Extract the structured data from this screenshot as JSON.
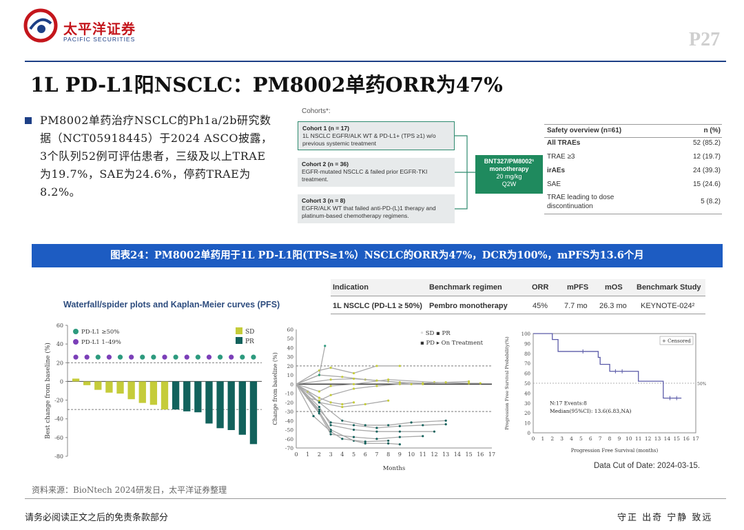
{
  "header": {
    "brand_cn": "太平洋证券",
    "brand_en": "PACIFIC SECURITIES",
    "page_number": "P27"
  },
  "page_title": "1L PD-L1阳NSCLC：PM8002单药ORR为47%",
  "bullet": "PM8002单药治疗NSCLC的Ph1a/2b研究数据（NCT05918445）于2024 ASCO披露，3个队列52例可评估患者，三级及以上TRAE为19.7%，SAE为24.6%，停药TRAE为8.2%。",
  "cohorts": {
    "heading": "Cohorts*:",
    "items": [
      {
        "title": "Cohort 1 (n = 17)",
        "desc": "1L NSCLC EGFR/ALK WT & PD-L1+ (TPS ≥1) w/o previous systemic treatment"
      },
      {
        "title": "Cohort 2 (n = 36)",
        "desc": "EGFR-mutated NSCLC & failed prior EGFR-TKI treatment."
      },
      {
        "title": "Cohort 3 (n = 8)",
        "desc": "EGFR/ALK WT that failed anti-PD-(L)1 therapy and platinum-based chemotherapy regimens."
      }
    ],
    "treatment": {
      "name": "BNT327/PM8002¹ monotherapy",
      "dose": "20 mg/kg",
      "schedule": "Q2W"
    }
  },
  "safety": {
    "header_label": "Safety overview (n=61)",
    "header_value": "n (%)",
    "rows": [
      {
        "label": "All TRAEs",
        "value": "52 (85.2)",
        "bold": true
      },
      {
        "label": "TRAE ≥3",
        "value": "12 (19.7)",
        "bold": false
      },
      {
        "label": "irAEs",
        "value": "24 (39.3)",
        "bold": true
      },
      {
        "label": "SAE",
        "value": "15 (24.6)",
        "bold": false
      },
      {
        "label": "TRAE leading to dose discontinuation",
        "value": "5 (8.2)",
        "bold": false
      }
    ]
  },
  "figure_banner": "图表24：PM8002单药用于1L PD-L1阳(TPS≥1%）NSCLC的ORR为47%，DCR为100%，mPFS为13.6个月",
  "benchmark": {
    "headers": [
      "Indication",
      "Benchmark regimen",
      "ORR",
      "mPFS",
      "mOS",
      "Benchmark Study"
    ],
    "row": [
      "1L NSCLC (PD-L1 ≥ 50%)",
      "Pembro monotherapy",
      "45%",
      "7.7 mo",
      "26.3 mo",
      "KEYNOTE-024²"
    ]
  },
  "figure_title": "Waterfall/spider plots and Kaplan-Meier curves (PFS)",
  "chart_data": [
    {
      "type": "bar",
      "subtype": "waterfall",
      "ylabel": "Best change from baseline (%)",
      "ylim": [
        -80,
        60
      ],
      "yticks": [
        60,
        40,
        20,
        0,
        -20,
        -40,
        -60,
        -80
      ],
      "reference_lines": [
        20,
        -30
      ],
      "legend": [
        {
          "name": "PD-L1 ≥50%",
          "color": "#2d9a7e",
          "marker": "dot"
        },
        {
          "name": "PD-L1 1–49%",
          "color": "#7b3fb8",
          "marker": "dot"
        },
        {
          "name": "SD",
          "color": "#c5cc3a",
          "marker": "square"
        },
        {
          "name": "PR",
          "color": "#12625c",
          "marker": "square"
        }
      ],
      "values": [
        3,
        -4,
        -9,
        -12,
        -13,
        -19,
        -23,
        -25,
        -30,
        -30,
        -32,
        -33,
        -45,
        -50,
        -52,
        -57,
        -67
      ],
      "response": [
        "SD",
        "SD",
        "SD",
        "SD",
        "SD",
        "SD",
        "SD",
        "SD",
        "SD",
        "PR",
        "PR",
        "PR",
        "PR",
        "PR",
        "PR",
        "PR",
        "PR"
      ],
      "pdl1": [
        "1-49",
        "1-49",
        "≥50",
        "1-49",
        "≥50",
        "1-49",
        "≥50",
        "≥50",
        "1-49",
        "≥50",
        "1-49",
        "≥50",
        "1-49",
        "≥50",
        "1-49",
        "≥50",
        "≥50"
      ]
    },
    {
      "type": "line",
      "subtype": "spider",
      "ylabel": "Change from baseline (%)",
      "xlabel": "Months",
      "xlim": [
        0,
        17
      ],
      "ylim": [
        -70,
        60
      ],
      "xticks": [
        0,
        1,
        2,
        3,
        4,
        5,
        6,
        7,
        8,
        9,
        10,
        11,
        12,
        13,
        14,
        15,
        16,
        17
      ],
      "yticks": [
        60,
        50,
        40,
        30,
        20,
        10,
        0,
        -10,
        -20,
        -30,
        -40,
        -50,
        -60,
        -70
      ],
      "reference_lines": [
        20,
        0,
        -30
      ],
      "legend": [
        "SD",
        "PR",
        "PD",
        "On Treatment"
      ],
      "series": [
        {
          "x": [
            0,
            2,
            3,
            5,
            8,
            12,
            15,
            16
          ],
          "y": [
            0,
            -8,
            -2,
            0,
            5,
            2,
            1,
            1
          ],
          "resp": "SD"
        },
        {
          "x": [
            0,
            2,
            3,
            5,
            7,
            9
          ],
          "y": [
            0,
            15,
            18,
            12,
            20,
            20
          ],
          "resp": "SD"
        },
        {
          "x": [
            0,
            1,
            2,
            3,
            5,
            7,
            9,
            11
          ],
          "y": [
            0,
            -15,
            -18,
            -12,
            -5,
            -2,
            0,
            0
          ],
          "resp": "SD"
        },
        {
          "x": [
            0,
            2,
            4,
            6,
            8,
            10
          ],
          "y": [
            0,
            10,
            8,
            5,
            3,
            0
          ],
          "resp": "SD"
        },
        {
          "x": [
            0,
            2,
            2.5
          ],
          "y": [
            0,
            10,
            42
          ],
          "resp": "PD"
        },
        {
          "x": [
            0,
            1,
            2,
            4,
            6,
            8
          ],
          "y": [
            0,
            -8,
            -20,
            -25,
            -22,
            -18
          ],
          "resp": "SD"
        },
        {
          "x": [
            0,
            2,
            3,
            5,
            7,
            9,
            11,
            13
          ],
          "y": [
            0,
            -28,
            -42,
            -45,
            -48,
            -46,
            -45,
            -44
          ],
          "resp": "PR"
        },
        {
          "x": [
            0,
            2,
            3,
            5,
            7,
            9,
            12
          ],
          "y": [
            0,
            -25,
            -45,
            -50,
            -52,
            -52,
            -52
          ],
          "resp": "PR"
        },
        {
          "x": [
            0,
            2,
            4,
            6,
            8,
            10,
            13
          ],
          "y": [
            0,
            -20,
            -40,
            -45,
            -45,
            -42,
            -40
          ],
          "resp": "PR"
        },
        {
          "x": [
            0,
            2,
            3,
            5,
            7,
            9,
            11
          ],
          "y": [
            0,
            -32,
            -55,
            -58,
            -60,
            -58,
            -57
          ],
          "resp": "PR"
        },
        {
          "x": [
            0,
            2,
            3,
            5,
            6,
            8,
            9
          ],
          "y": [
            0,
            -30,
            -50,
            -62,
            -65,
            -65,
            -66
          ],
          "resp": "PR"
        },
        {
          "x": [
            0,
            1.5,
            3,
            4,
            6,
            8
          ],
          "y": [
            0,
            -35,
            -52,
            -60,
            -63,
            -62
          ],
          "resp": "PR"
        },
        {
          "x": [
            0,
            2,
            3,
            4,
            5
          ],
          "y": [
            0,
            -15,
            -20,
            -22,
            -20
          ],
          "resp": "SD"
        },
        {
          "x": [
            0,
            3,
            5,
            7,
            9,
            11,
            13,
            15
          ],
          "y": [
            0,
            5,
            6,
            4,
            2,
            1,
            2,
            3
          ],
          "resp": "SD"
        },
        {
          "x": [
            0,
            2,
            3
          ],
          "y": [
            0,
            -30,
            -52
          ],
          "resp": "PR"
        }
      ]
    },
    {
      "type": "line",
      "subtype": "kaplan-meier",
      "ylabel": "Progression Free Survival Probability(%)",
      "xlabel": "Progression Free Survival (months)",
      "xlim": [
        0,
        17
      ],
      "ylim": [
        0,
        100
      ],
      "xticks": [
        0,
        1,
        2,
        3,
        4,
        5,
        6,
        7,
        8,
        9,
        10,
        11,
        12,
        13,
        14,
        15,
        16,
        17
      ],
      "yticks": [
        0,
        10,
        20,
        30,
        40,
        50,
        60,
        70,
        80,
        90,
        100
      ],
      "reference_line": 50,
      "reference_label": "50%",
      "legend": [
        "Censored"
      ],
      "annotation_1": "N:17  Events:8",
      "annotation_2": "Median(95%CI): 13.6(6.83,NA)",
      "x": [
        0,
        2.0,
        2.0,
        2.6,
        2.6,
        6.8,
        6.8,
        7.0,
        7.0,
        8.0,
        8.0,
        11.0,
        11.0,
        13.6,
        13.6,
        15.5
      ],
      "y": [
        100,
        100,
        94,
        94,
        82,
        82,
        76,
        76,
        69,
        69,
        62,
        62,
        52,
        52,
        35,
        35
      ],
      "censored_x": [
        5.2,
        8.6,
        9.3,
        14.3,
        15.0
      ]
    }
  ],
  "data_cut": "Data Cut of Date: 2024-03-15.",
  "source": "资料来源：BioNtech 2024研发日，太平洋证券整理",
  "footer_left": "请务必阅读正文之后的免责条款部分",
  "footer_right": "守正 出奇 宁静 致远"
}
